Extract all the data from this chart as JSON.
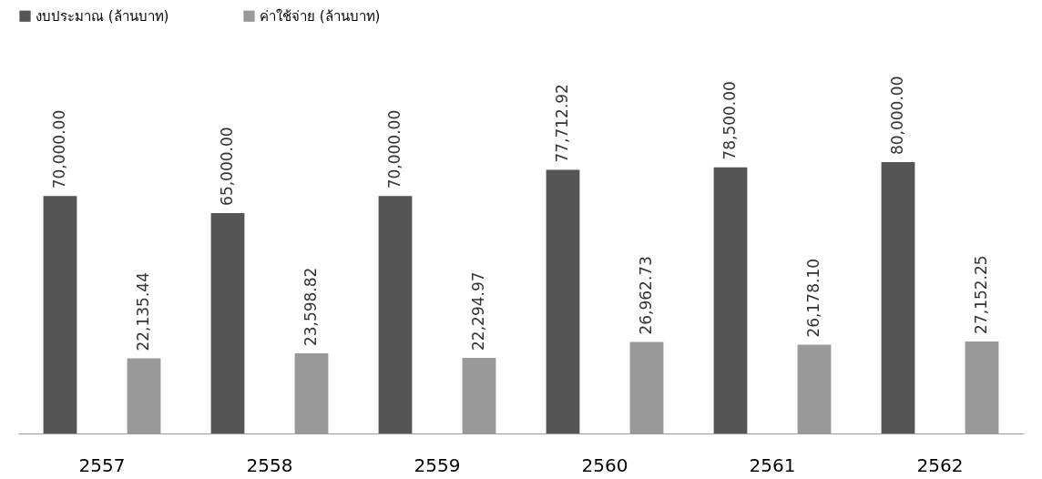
{
  "chart_data": {
    "type": "bar",
    "categories": [
      "2557",
      "2558",
      "2559",
      "2560",
      "2561",
      "2562"
    ],
    "series": [
      {
        "name": "งบประมาณ (ล้านบาท)",
        "color": "#555555",
        "values": [
          70000,
          65000,
          70000,
          77712.92,
          78500,
          80000
        ],
        "value_labels": [
          "70,000.00",
          "65,000.00",
          "70,000.00",
          "77,712.92",
          "78,500.00",
          "80,000.00"
        ]
      },
      {
        "name": "ค่าใช้จ่าย (ล้านบาท)",
        "color": "#999999",
        "values": [
          22135.44,
          23598.82,
          22294.97,
          26962.73,
          26178.1,
          27152.25
        ],
        "value_labels": [
          "22,135.44",
          "23,598.82",
          "22,294.97",
          "26,962.73",
          "26,178.10",
          "27,152.25"
        ]
      }
    ],
    "legend": "top"
  }
}
